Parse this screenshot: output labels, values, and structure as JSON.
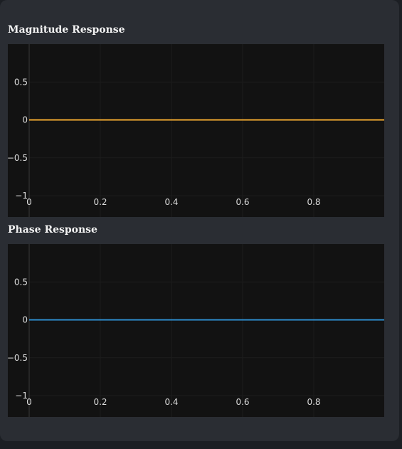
{
  "chart_data": [
    {
      "type": "line",
      "title": "Magnitude Response",
      "xlabel": "",
      "ylabel": "",
      "xlim": [
        0,
        1
      ],
      "ylim": [
        -1,
        1
      ],
      "x_ticks": [
        0,
        0.2,
        0.4,
        0.6,
        0.8
      ],
      "x_tick_labels": [
        "0",
        "0.2",
        "0.4",
        "0.6",
        "0.8"
      ],
      "y_ticks": [
        0.5,
        0,
        -0.5,
        -1
      ],
      "y_tick_labels": [
        "0.5",
        "0",
        "−0.5",
        "−1"
      ],
      "grid": true,
      "series": [
        {
          "color": "#f0a930",
          "x": [
            0,
            1
          ],
          "y": [
            0,
            0
          ]
        }
      ]
    },
    {
      "type": "line",
      "title": "Phase Response",
      "xlabel": "",
      "ylabel": "",
      "xlim": [
        0,
        1
      ],
      "ylim": [
        -1,
        1
      ],
      "x_ticks": [
        0,
        0.2,
        0.4,
        0.6,
        0.8
      ],
      "x_tick_labels": [
        "0",
        "0.2",
        "0.4",
        "0.6",
        "0.8"
      ],
      "y_ticks": [
        0.5,
        0,
        -0.5,
        -1
      ],
      "y_tick_labels": [
        "0.5",
        "0",
        "−0.5",
        "−1"
      ],
      "grid": true,
      "series": [
        {
          "color": "#2f8fd0",
          "x": [
            0,
            1
          ],
          "y": [
            0,
            0
          ]
        }
      ]
    }
  ]
}
